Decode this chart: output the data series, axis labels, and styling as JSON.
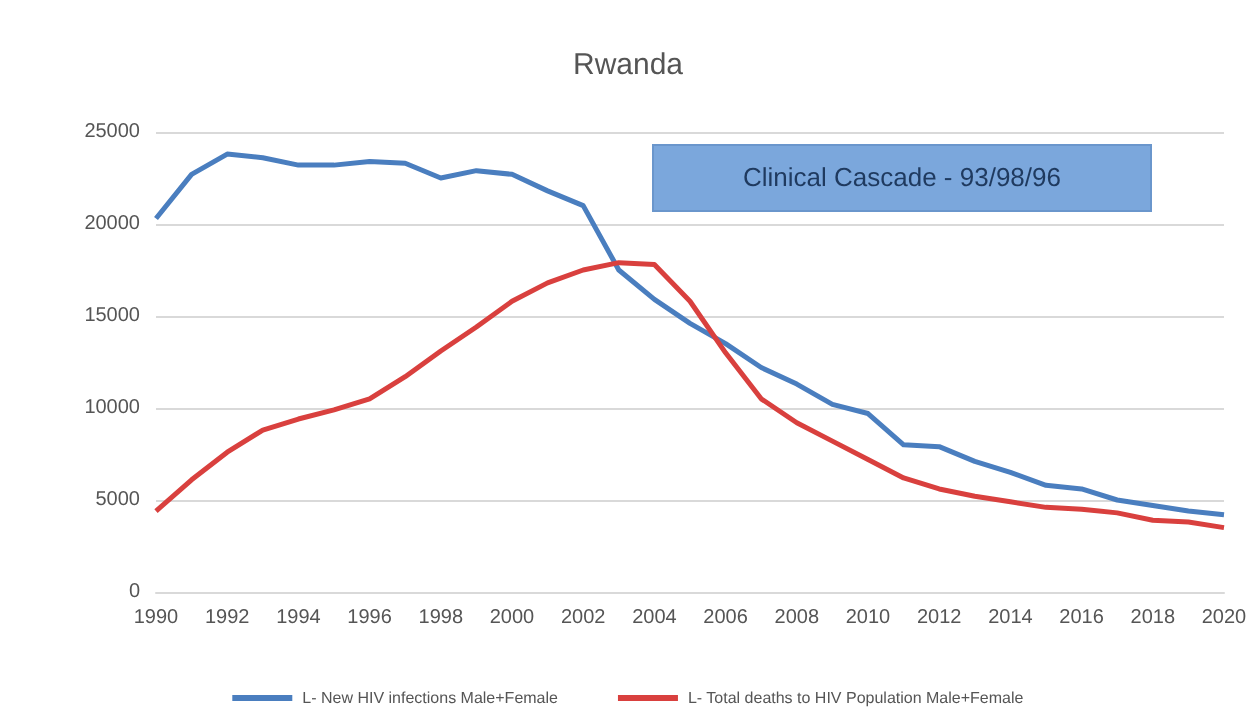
{
  "chart_data": {
    "type": "line",
    "title": "Rwanda",
    "categories": [
      "1990",
      null,
      "1992",
      null,
      "1994",
      null,
      "1996",
      null,
      "1998",
      null,
      "2000",
      null,
      "2002",
      null,
      "2004",
      null,
      "2006",
      null,
      "2008",
      null,
      "2010",
      null,
      "2012",
      null,
      "2014",
      null,
      "2016",
      null,
      "2018",
      null,
      "2020"
    ],
    "series": [
      {
        "name": "L- New HIV infections Male+Female",
        "color": "#4a7ebf",
        "values": [
          20300,
          22700,
          23800,
          23600,
          23200,
          23200,
          23400,
          23300,
          22500,
          22900,
          22700,
          21800,
          21000,
          17500,
          15900,
          14600,
          13500,
          12200,
          11300,
          10200,
          9700,
          8000,
          7900,
          7100,
          6500,
          5800,
          5600,
          5000,
          4700,
          4400,
          4200
        ]
      },
      {
        "name": "L- Total deaths to HIV Population Male+Female",
        "color": "#d9403e",
        "values": [
          4400,
          6100,
          7600,
          8800,
          9400,
          9900,
          10500,
          11700,
          13100,
          14400,
          15800,
          16800,
          17500,
          17900,
          17800,
          15800,
          13000,
          10500,
          9200,
          8200,
          7200,
          6200,
          5600,
          5200,
          4900,
          4600,
          4500,
          4300,
          3900,
          3800,
          3500
        ]
      }
    ],
    "ylim": [
      0,
      25000
    ],
    "yticks": [
      0,
      5000,
      10000,
      15000,
      20000,
      25000
    ],
    "grid": "y",
    "legend": "bottom",
    "marker": "none",
    "line_style": "solid",
    "annotations": [
      "Clinical Cascade - 93/98/96"
    ]
  }
}
